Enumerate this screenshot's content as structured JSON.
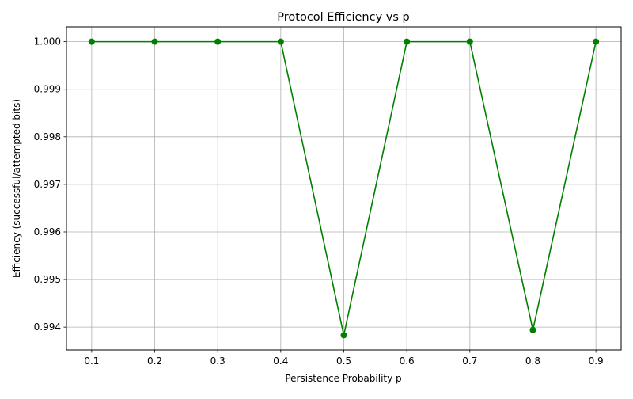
{
  "chart_data": {
    "type": "line",
    "title": "Protocol Efficiency vs p",
    "xlabel": "Persistence Probability p",
    "ylabel": "Efficiency (successful/attempted bits)",
    "x": [
      0.1,
      0.2,
      0.3,
      0.4,
      0.5,
      0.6,
      0.7,
      0.8,
      0.9
    ],
    "series": [
      {
        "values": [
          1.0,
          1.0,
          1.0,
          1.0,
          0.99383,
          1.0,
          1.0,
          0.99394,
          1.0
        ],
        "color": "#008000",
        "marker": "circle"
      }
    ],
    "xlim": [
      0.06,
      0.94
    ],
    "ylim": [
      0.99352,
      1.00031
    ],
    "xticks": [
      "0.1",
      "0.2",
      "0.3",
      "0.4",
      "0.5",
      "0.6",
      "0.7",
      "0.8",
      "0.9"
    ],
    "yticks": [
      "0.994",
      "0.995",
      "0.996",
      "0.997",
      "0.998",
      "0.999",
      "1.000"
    ],
    "grid": true
  }
}
